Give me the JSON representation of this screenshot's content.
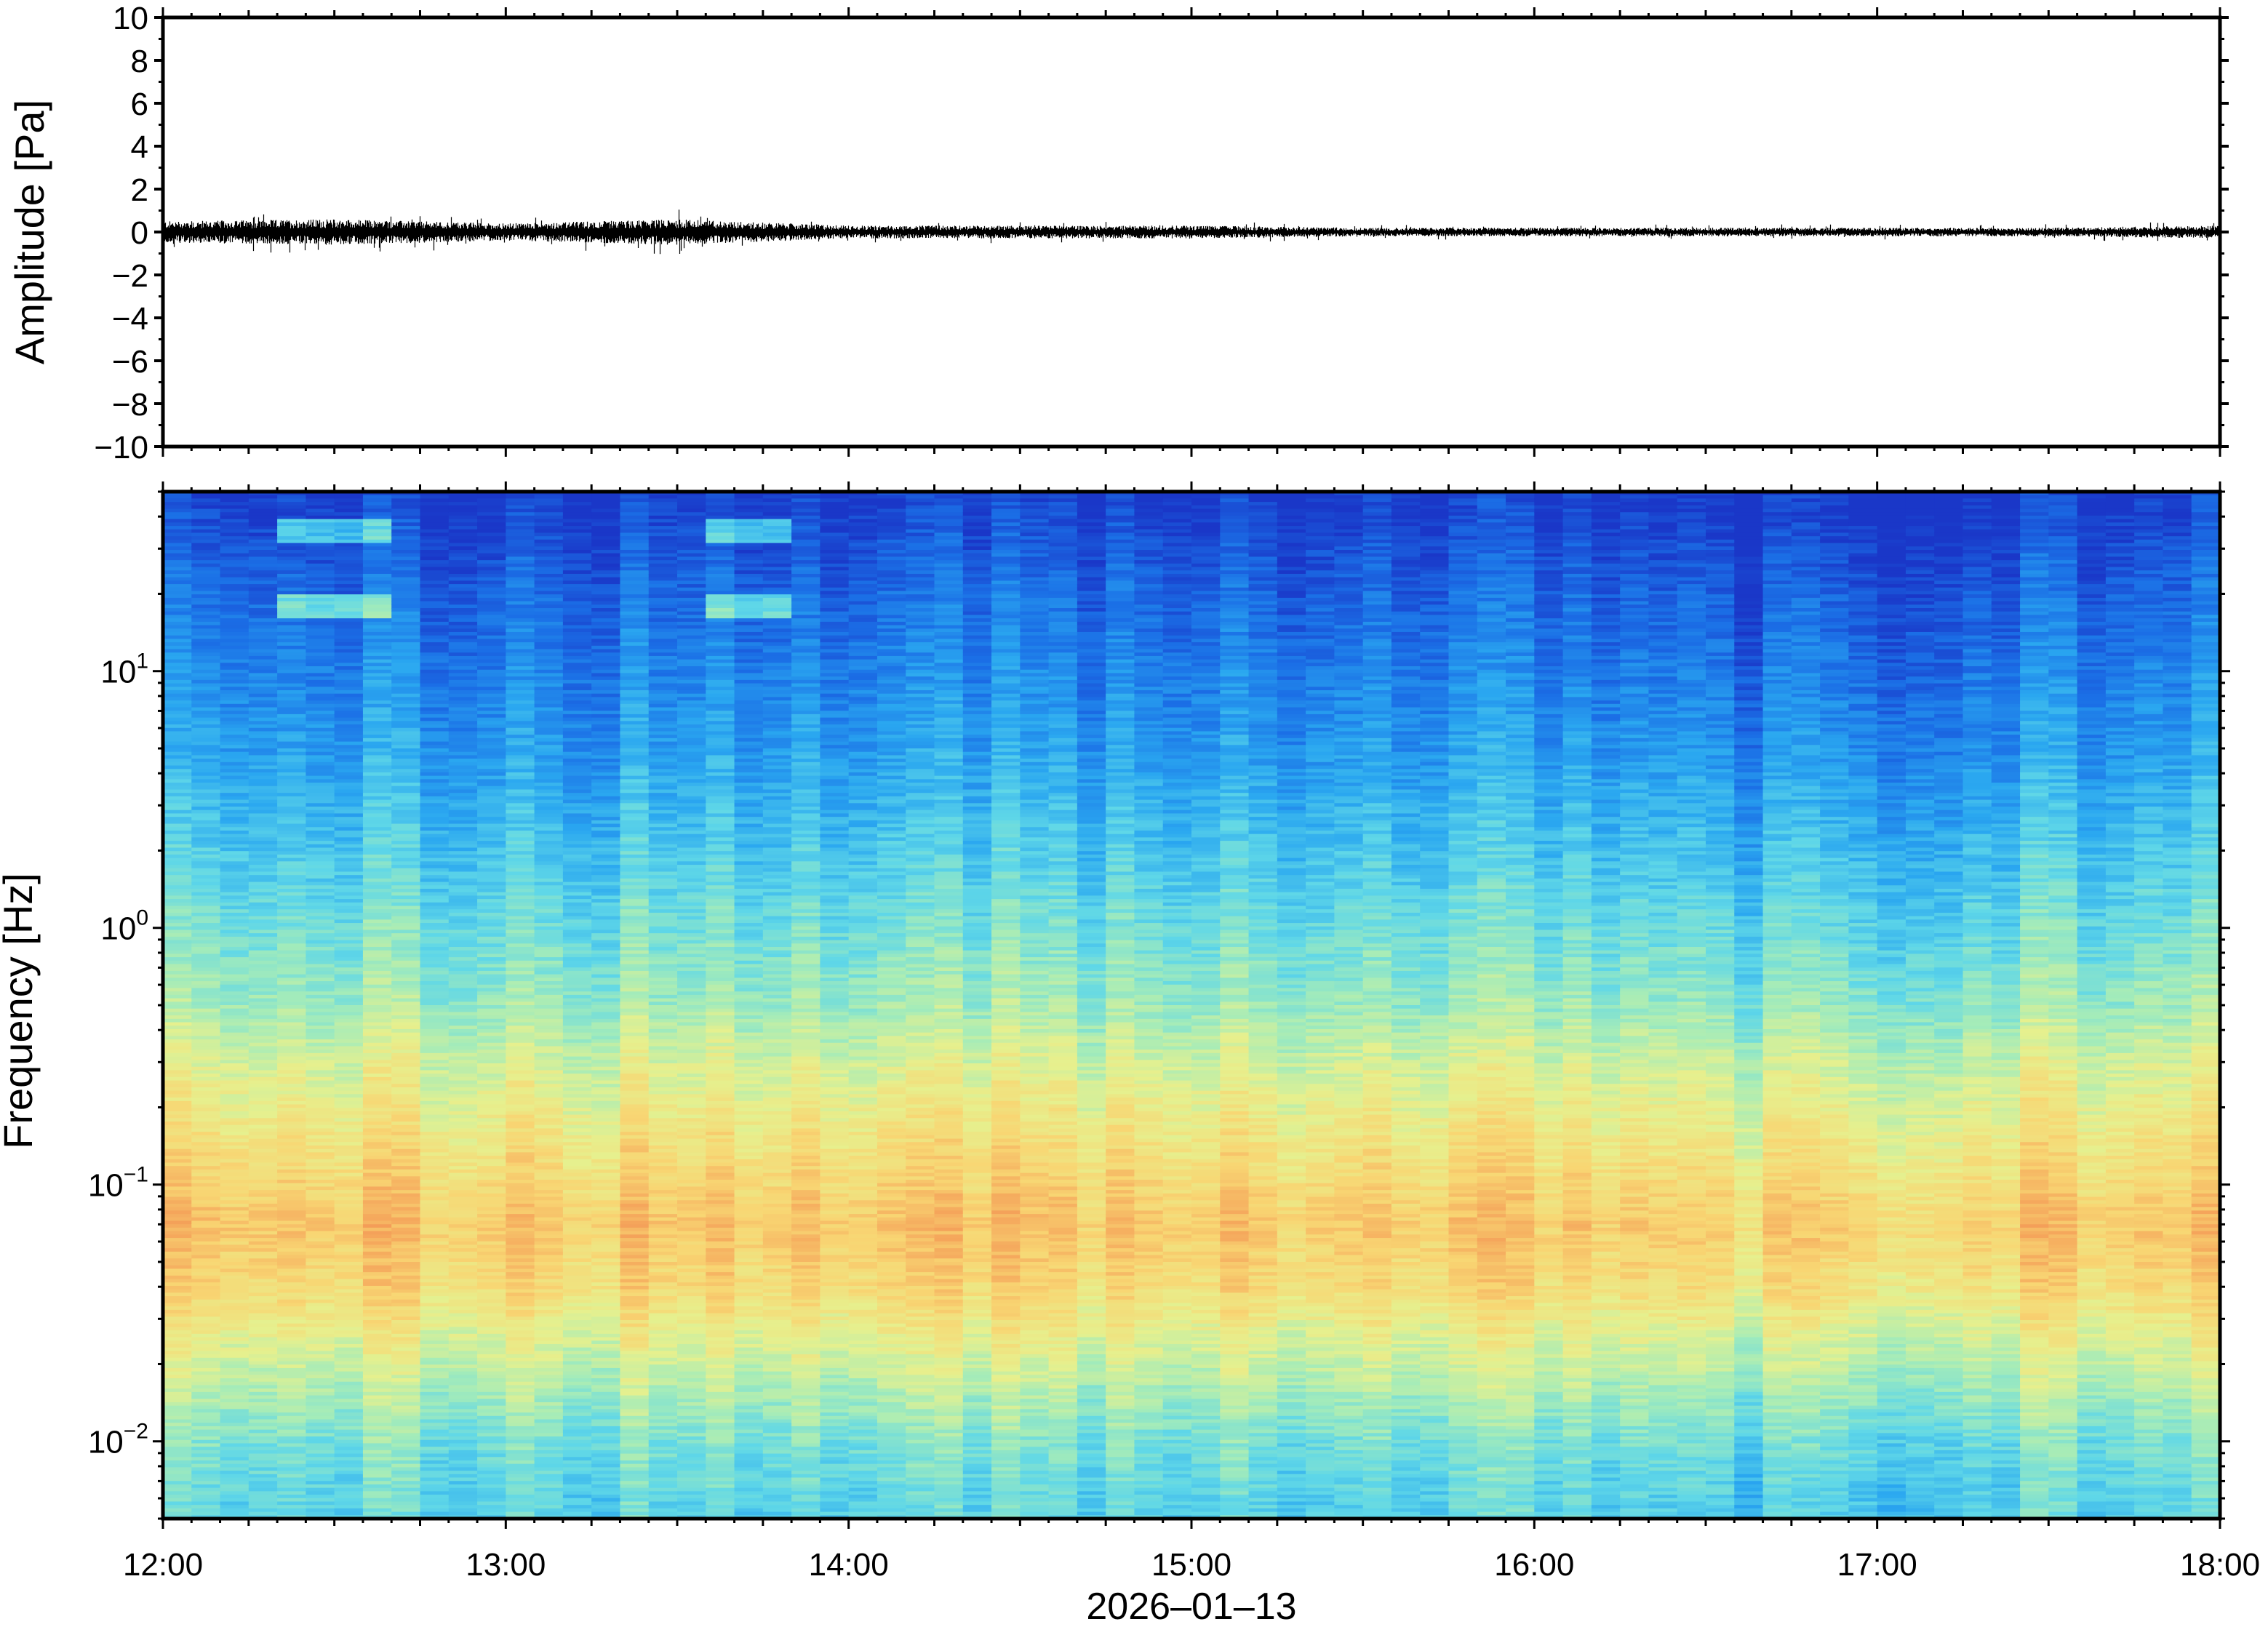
{
  "chart_data": [
    {
      "type": "line",
      "title": "",
      "xlabel": "",
      "ylabel": "Amplitude [Pa]",
      "ylim": [
        -10,
        10
      ],
      "yticks": [
        10,
        8,
        6,
        4,
        2,
        0,
        -2,
        -4,
        -6,
        -8,
        -10
      ],
      "ytick_labels": [
        "10",
        "8",
        "6",
        "4",
        "2",
        "0",
        "−2",
        "−4",
        "−6",
        "−8",
        "−10"
      ],
      "x_range": [
        "12:00",
        "18:00"
      ],
      "series": [
        {
          "values_description_free": true,
          "x": [
            "12:00",
            "12:30",
            "13:00",
            "13:30",
            "14:00",
            "14:30",
            "15:00",
            "15:30",
            "16:00",
            "16:30",
            "17:00",
            "17:30",
            "18:00"
          ],
          "envelope_max": [
            0.5,
            0.6,
            0.4,
            0.6,
            0.3,
            0.3,
            0.3,
            0.2,
            0.2,
            0.2,
            0.2,
            0.2,
            0.3
          ],
          "envelope_min": [
            -0.5,
            -0.6,
            -0.4,
            -0.6,
            -0.3,
            -0.3,
            -0.3,
            -0.2,
            -0.2,
            -0.2,
            -0.2,
            -0.2,
            -0.3
          ]
        }
      ],
      "grid": false,
      "line_color": "#000000"
    },
    {
      "type": "heatmap",
      "title": "",
      "xlabel": "2026–01–13",
      "ylabel": "Frequency [Hz]",
      "y_scale": "log",
      "ylim": [
        0.005,
        50
      ],
      "yticks": [
        {
          "base": "10",
          "exp": "1"
        },
        {
          "base": "10",
          "exp": "0"
        },
        {
          "base": "10",
          "exp": "−1"
        },
        {
          "base": "10",
          "exp": "−2"
        }
      ],
      "xticks": [
        "12:00",
        "13:00",
        "14:00",
        "15:00",
        "16:00",
        "17:00",
        "18:00"
      ],
      "colormap": "jet-like",
      "colormap_stops": [
        "#1a37c8",
        "#1b6fe6",
        "#2aa7f0",
        "#5fd7e8",
        "#a6ecb8",
        "#e6f08e",
        "#f8d673",
        "#f5a75c",
        "#ef7a4a"
      ],
      "rows": [
        {
          "freq_hz": 50,
          "level": 0.02
        },
        {
          "freq_hz": 20,
          "level": 0.12
        },
        {
          "freq_hz": 10,
          "level": 0.18
        },
        {
          "freq_hz": 5,
          "level": 0.24
        },
        {
          "freq_hz": 2,
          "level": 0.34
        },
        {
          "freq_hz": 1,
          "level": 0.42
        },
        {
          "freq_hz": 0.5,
          "level": 0.5
        },
        {
          "freq_hz": 0.3,
          "level": 0.6
        },
        {
          "freq_hz": 0.15,
          "level": 0.7
        },
        {
          "freq_hz": 0.07,
          "level": 0.8
        },
        {
          "freq_hz": 0.04,
          "level": 0.74
        },
        {
          "freq_hz": 0.02,
          "level": 0.58
        },
        {
          "freq_hz": 0.01,
          "level": 0.44
        },
        {
          "freq_hz": 0.006,
          "level": 0.38
        }
      ],
      "time_columns": 72,
      "bright_patches": [
        {
          "t_start": "12:20",
          "t_end": "12:40",
          "freq_hz": 35
        },
        {
          "t_start": "12:20",
          "t_end": "12:40",
          "freq_hz": 18
        },
        {
          "t_start": "13:35",
          "t_end": "13:50",
          "freq_hz": 35
        },
        {
          "t_start": "13:35",
          "t_end": "13:50",
          "freq_hz": 18
        }
      ]
    }
  ]
}
